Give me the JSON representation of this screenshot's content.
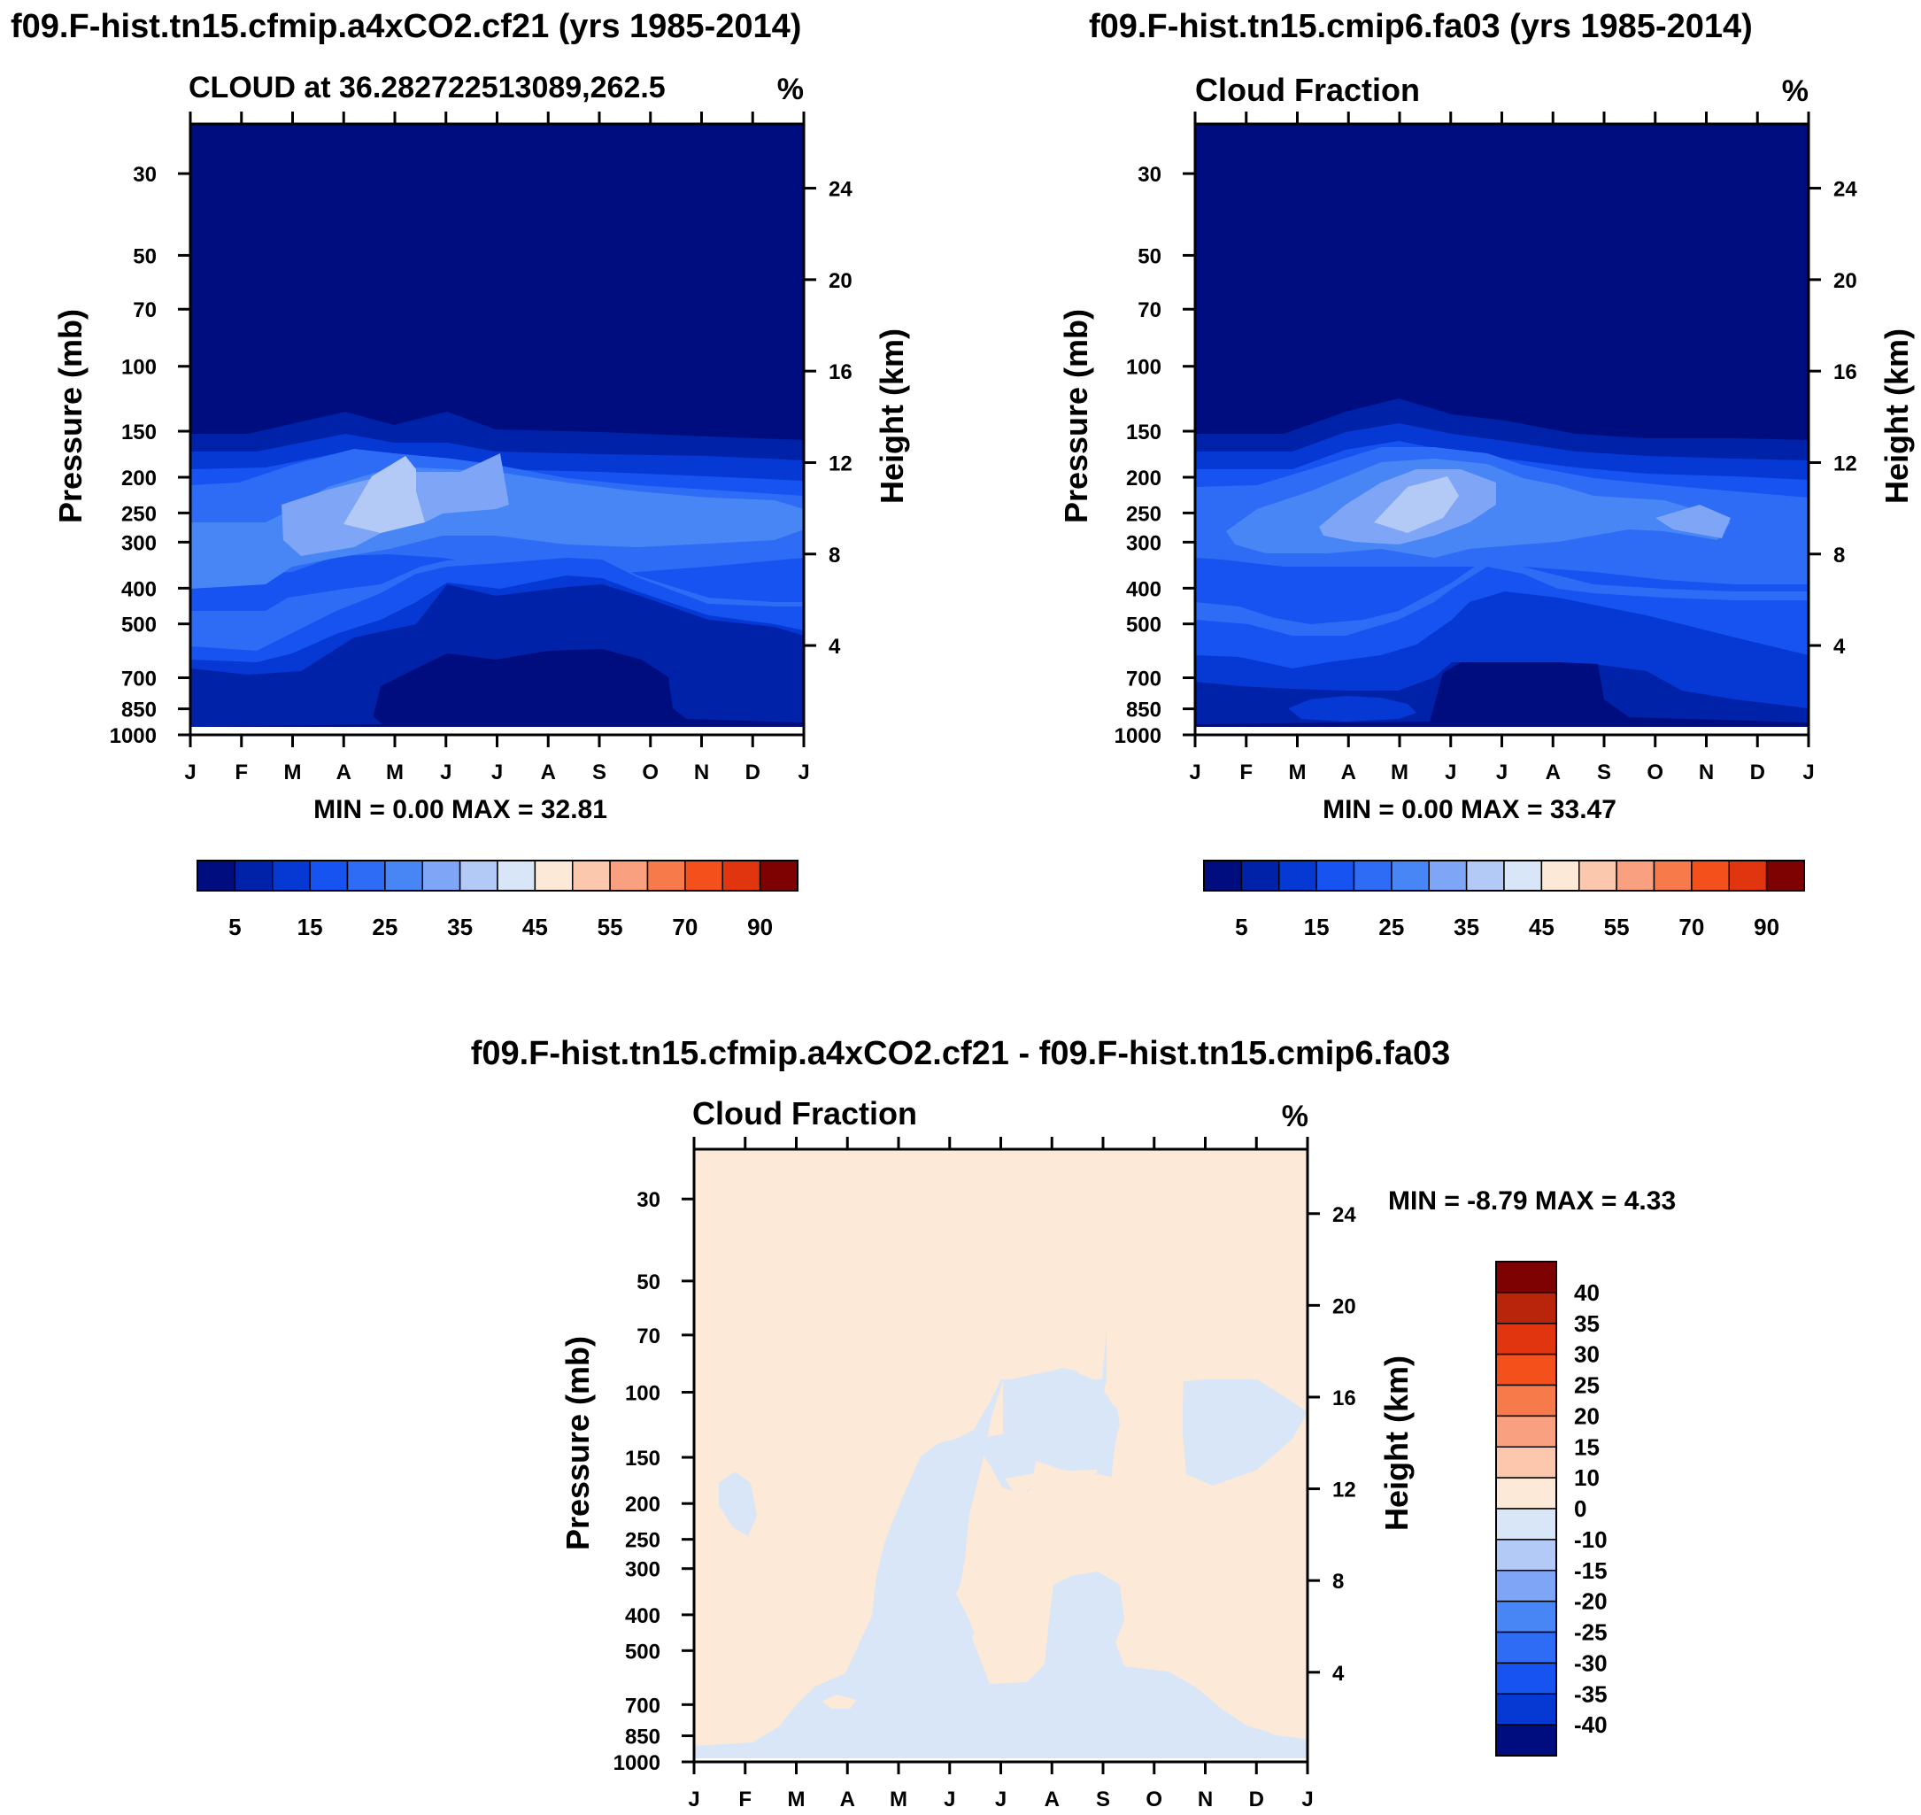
{
  "chart_data": [
    {
      "type": "contour",
      "title": "f09.F-hist.tn15.cfmip.a4xCO2.cf21 (yrs 1985-2014)",
      "subtitle_left": "CLOUD at 36.282722513089,262.5",
      "units": "%",
      "ylabel": "Pressure (mb)",
      "ylabel_right": "Height (km)",
      "x_ticks": [
        "J",
        "F",
        "M",
        "A",
        "M",
        "J",
        "J",
        "A",
        "S",
        "O",
        "N",
        "D",
        "J"
      ],
      "y_ticks": [
        "30",
        "50",
        "70",
        "100",
        "150",
        "200",
        "250",
        "300",
        "400",
        "500",
        "700",
        "850",
        "1000"
      ],
      "y_right_ticks": [
        "24",
        "20",
        "16",
        "12",
        "8",
        "4"
      ],
      "min_max": "MIN =   0.00 MAX =  32.81",
      "colorbar_labels": [
        "5",
        "15",
        "25",
        "35",
        "45",
        "55",
        "70",
        "90"
      ],
      "levels": [
        0,
        5,
        10,
        15,
        20,
        25,
        30,
        35,
        40,
        45,
        50,
        55,
        60,
        70,
        80,
        90
      ]
    },
    {
      "type": "contour",
      "title": "f09.F-hist.tn15.cmip6.fa03 (yrs 1985-2014)",
      "subtitle_left": "Cloud Fraction",
      "units": "%",
      "ylabel": "Pressure (mb)",
      "ylabel_right": "Height (km)",
      "x_ticks": [
        "J",
        "F",
        "M",
        "A",
        "M",
        "J",
        "J",
        "A",
        "S",
        "O",
        "N",
        "D",
        "J"
      ],
      "y_ticks": [
        "30",
        "50",
        "70",
        "100",
        "150",
        "200",
        "250",
        "300",
        "400",
        "500",
        "700",
        "850",
        "1000"
      ],
      "y_right_ticks": [
        "24",
        "20",
        "16",
        "12",
        "8",
        "4"
      ],
      "min_max": "MIN =   0.00 MAX =  33.47",
      "colorbar_labels": [
        "5",
        "15",
        "25",
        "35",
        "45",
        "55",
        "70",
        "90"
      ],
      "levels": [
        0,
        5,
        10,
        15,
        20,
        25,
        30,
        35,
        40,
        45,
        50,
        55,
        60,
        70,
        80,
        90
      ]
    },
    {
      "type": "contour",
      "title": "f09.F-hist.tn15.cfmip.a4xCO2.cf21 - f09.F-hist.tn15.cmip6.fa03",
      "subtitle_left": "Cloud Fraction",
      "units": "%",
      "ylabel": "Pressure (mb)",
      "ylabel_right": "Height (km)",
      "x_ticks": [
        "J",
        "F",
        "M",
        "A",
        "M",
        "J",
        "J",
        "A",
        "S",
        "O",
        "N",
        "D",
        "J"
      ],
      "y_ticks": [
        "30",
        "50",
        "70",
        "100",
        "150",
        "200",
        "250",
        "300",
        "400",
        "500",
        "700",
        "850",
        "1000"
      ],
      "y_right_ticks": [
        "24",
        "20",
        "16",
        "12",
        "8",
        "4"
      ],
      "min_max": "MIN =  -8.79 MAX =   4.33",
      "colorbar_labels": [
        "40",
        "35",
        "30",
        "25",
        "20",
        "15",
        "10",
        "0",
        "-10",
        "-15",
        "-20",
        "-25",
        "-30",
        "-35",
        "-40"
      ],
      "levels": [
        -40,
        -35,
        -30,
        -25,
        -20,
        -15,
        -10,
        0,
        10,
        15,
        20,
        25,
        30,
        35,
        40
      ]
    }
  ],
  "colors": {
    "seq": [
      "#000d7f",
      "#0022a8",
      "#0638d4",
      "#1653f0",
      "#2e6cf5",
      "#4886f6",
      "#7ea5f6",
      "#b3c9f6",
      "#d8e6f8",
      "#fde9d7",
      "#fbc8ae",
      "#f9a080",
      "#f77a4a",
      "#f4501c",
      "#e0350e",
      "#b8250a",
      "#7e0202"
    ],
    "diff": [
      "#000d7f",
      "#0022a8",
      "#0638d4",
      "#1653f0",
      "#2e6cf5",
      "#4886f6",
      "#7ea5f6",
      "#b3c9f6",
      "#d8e6f8",
      "#fde9d7",
      "#fbc8ae",
      "#f9a080",
      "#f77a4a",
      "#f4501c",
      "#e0350e",
      "#b8250a",
      "#7e0202"
    ]
  }
}
